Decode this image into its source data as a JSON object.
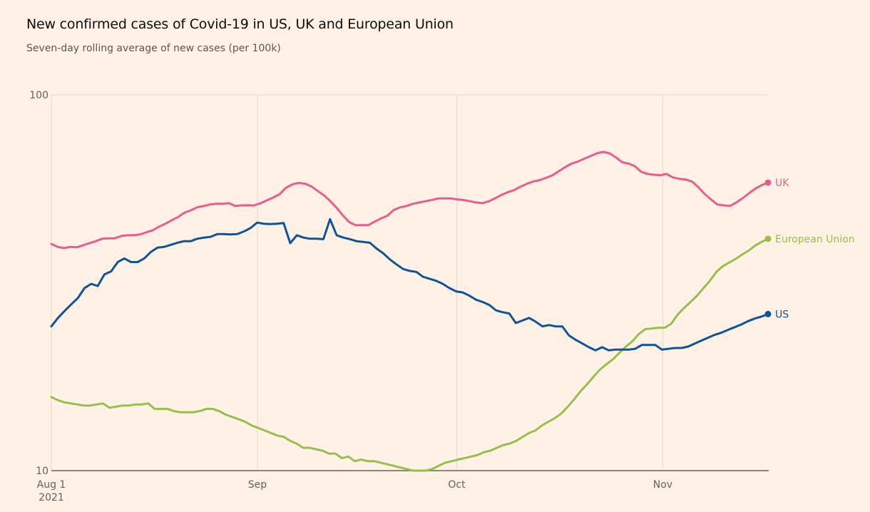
{
  "chart_data": {
    "type": "line",
    "title": "New confirmed cases of Covid-19 in US, UK and European Union",
    "subtitle": "Seven-day rolling average of new cases (per 100k)",
    "xlabel": "",
    "ylabel": "",
    "yscale": "log",
    "ylim": [
      10,
      100
    ],
    "y_ticks": [
      {
        "value": 10,
        "label": "10"
      },
      {
        "value": 100,
        "label": "100"
      }
    ],
    "x_start": "2021-08-01",
    "x_end": "2021-11-17",
    "x_ticks": [
      {
        "day": 0,
        "label": "Aug 1",
        "sublabel": "2021"
      },
      {
        "day": 31,
        "label": "Sep",
        "sublabel": ""
      },
      {
        "day": 61,
        "label": "Oct",
        "sublabel": ""
      },
      {
        "day": 92,
        "label": "Nov",
        "sublabel": ""
      }
    ],
    "grid": "vertical",
    "legend": "inline-right",
    "series": [
      {
        "name": "UK",
        "color": "#e95d8c",
        "values": [
          40.1,
          39.4,
          39.1,
          39.4,
          39.3,
          39.8,
          40.3,
          40.8,
          41.4,
          41.5,
          41.5,
          42.1,
          42.3,
          42.3,
          42.5,
          43.1,
          43.6,
          44.6,
          45.4,
          46.4,
          47.3,
          48.6,
          49.3,
          50.2,
          50.6,
          51.1,
          51.3,
          51.3,
          51.5,
          50.6,
          50.8,
          50.8,
          50.8,
          51.5,
          52.4,
          53.3,
          54.4,
          56.6,
          57.8,
          58.3,
          58.0,
          57.1,
          55.5,
          54.0,
          52.1,
          50.0,
          47.7,
          45.8,
          45.0,
          45.0,
          45.0,
          46.0,
          46.9,
          47.7,
          49.4,
          50.2,
          50.6,
          51.3,
          51.7,
          52.1,
          52.5,
          53.0,
          53.0,
          53.0,
          52.7,
          52.5,
          52.1,
          51.7,
          51.5,
          52.1,
          53.1,
          54.2,
          55.1,
          55.8,
          57.0,
          58.0,
          58.8,
          59.3,
          60.1,
          61.1,
          62.6,
          64.2,
          65.6,
          66.4,
          67.6,
          68.7,
          69.9,
          70.5,
          69.9,
          68.2,
          66.2,
          65.6,
          64.6,
          62.4,
          61.6,
          61.3,
          61.1,
          61.6,
          60.3,
          59.8,
          59.5,
          58.8,
          56.8,
          54.5,
          52.7,
          51.1,
          50.8,
          50.6,
          51.7,
          53.1,
          54.7,
          56.3,
          57.5,
          58.4
        ]
      },
      {
        "name": "European Union",
        "color": "#96bf4b",
        "values": [
          15.7,
          15.4,
          15.2,
          15.1,
          15.0,
          14.9,
          14.9,
          15.0,
          15.1,
          14.7,
          14.8,
          14.9,
          14.9,
          15.0,
          15.0,
          15.1,
          14.6,
          14.6,
          14.6,
          14.4,
          14.3,
          14.3,
          14.3,
          14.4,
          14.6,
          14.6,
          14.4,
          14.1,
          13.9,
          13.7,
          13.5,
          13.2,
          13.0,
          12.8,
          12.6,
          12.4,
          12.3,
          12.0,
          11.8,
          11.5,
          11.5,
          11.4,
          11.3,
          11.1,
          11.1,
          10.8,
          10.9,
          10.6,
          10.7,
          10.6,
          10.6,
          10.5,
          10.4,
          10.3,
          10.2,
          10.1,
          10.0,
          10.0,
          10.0,
          10.1,
          10.3,
          10.5,
          10.6,
          10.7,
          10.8,
          10.9,
          11.0,
          11.2,
          11.3,
          11.5,
          11.7,
          11.8,
          12.0,
          12.3,
          12.6,
          12.8,
          13.2,
          13.5,
          13.8,
          14.2,
          14.8,
          15.5,
          16.3,
          17.0,
          17.8,
          18.6,
          19.2,
          19.8,
          20.6,
          21.4,
          22.1,
          23.1,
          23.8,
          23.9,
          24.0,
          24.0,
          24.6,
          26.0,
          27.1,
          28.1,
          29.2,
          30.6,
          32.0,
          33.8,
          35.0,
          35.8,
          36.6,
          37.6,
          38.5,
          39.7,
          40.6,
          41.4
        ]
      },
      {
        "name": "US",
        "color": "#0f5499",
        "values": [
          24.2,
          25.5,
          26.6,
          27.7,
          28.8,
          30.6,
          31.4,
          31.0,
          33.3,
          33.9,
          35.9,
          36.7,
          35.9,
          35.9,
          36.7,
          38.2,
          39.2,
          39.4,
          39.9,
          40.4,
          40.8,
          40.8,
          41.4,
          41.7,
          41.9,
          42.6,
          42.6,
          42.5,
          42.6,
          43.3,
          44.2,
          45.7,
          45.4,
          45.3,
          45.4,
          45.6,
          40.3,
          42.3,
          41.7,
          41.4,
          41.4,
          41.3,
          46.7,
          42.3,
          41.7,
          41.3,
          40.8,
          40.6,
          40.4,
          39.0,
          37.9,
          36.5,
          35.4,
          34.4,
          34.0,
          33.8,
          32.8,
          32.4,
          32.0,
          31.4,
          30.6,
          30.0,
          29.8,
          29.2,
          28.5,
          28.1,
          27.6,
          26.7,
          26.4,
          26.2,
          24.7,
          25.1,
          25.5,
          24.9,
          24.2,
          24.4,
          24.2,
          24.2,
          22.9,
          22.3,
          21.8,
          21.3,
          20.9,
          21.3,
          20.9,
          21.0,
          21.0,
          21.0,
          21.1,
          21.6,
          21.6,
          21.6,
          21.0,
          21.1,
          21.2,
          21.2,
          21.4,
          21.8,
          22.2,
          22.6,
          23.0,
          23.3,
          23.7,
          24.1,
          24.5,
          25.0,
          25.4,
          25.7,
          26.1
        ]
      }
    ]
  }
}
